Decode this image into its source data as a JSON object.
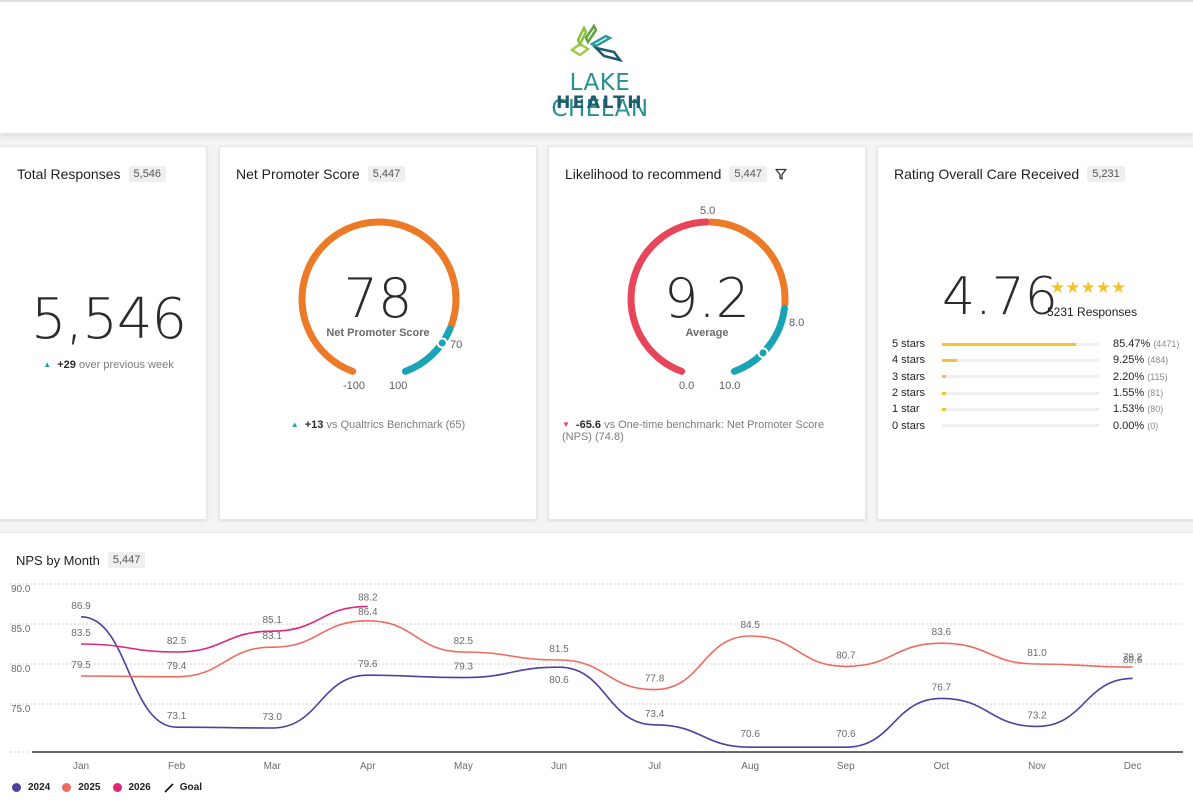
{
  "header": {
    "logo_line1": "LAKE CHELAN",
    "logo_line2": "HEALTH"
  },
  "total_responses": {
    "title": "Total Responses",
    "badge": "5,546",
    "value": "5,546",
    "delta_value": "+29",
    "delta_text": "over previous week"
  },
  "nps": {
    "title": "Net Promoter Score",
    "badge": "5,447",
    "value": "78",
    "sublabel": "Net Promoter Score",
    "scale_min": "-100",
    "scale_max": "100",
    "threshold_label": "70",
    "score": 78,
    "range": [
      -100,
      100
    ],
    "threshold": 70,
    "delta_value": "+13",
    "delta_text": "vs Qualtrics Benchmark (65)",
    "colors": {
      "low": "#ec7a26",
      "high": "#1aa3b5"
    }
  },
  "likelihood": {
    "title": "Likelihood to recommend",
    "badge": "5,447",
    "filter_icon": "filter-icon",
    "value": "9.2",
    "sublabel": "Average",
    "scale_min": "0.0",
    "scale_mid": "5.0",
    "scale_high": "8.0",
    "scale_max": "10.0",
    "score": 9.2,
    "range": [
      0,
      10
    ],
    "thresholds": [
      5,
      8
    ],
    "delta_value": "-65.6",
    "delta_text": "vs One-time benchmark: Net Promoter Score (NPS) (74.8)",
    "colors": {
      "detractor": "#e8455a",
      "passive": "#ec7a26",
      "promoter": "#1aa3b5"
    }
  },
  "rating": {
    "title": "Rating Overall Care Received",
    "badge": "5,231",
    "value": "4.76",
    "stars": "★★★★★",
    "responses": "5231 Responses",
    "distribution": [
      {
        "label": "5 stars",
        "pct": "85.47%",
        "count": "(4471)",
        "fraction": 0.8547
      },
      {
        "label": "4 stars",
        "pct": "9.25%",
        "count": "(484)",
        "fraction": 0.0925
      },
      {
        "label": "3 stars",
        "pct": "2.20%",
        "count": "(115)",
        "fraction": 0.022
      },
      {
        "label": "2 stars",
        "pct": "1.55%",
        "count": "(81)",
        "fraction": 0.0155
      },
      {
        "label": "1 star",
        "pct": "1.53%",
        "count": "(80)",
        "fraction": 0.0153
      },
      {
        "label": "0 stars",
        "pct": "0.00%",
        "count": "(0)",
        "fraction": 0
      }
    ]
  },
  "nps_by_month": {
    "title": "NPS by Month",
    "badge": "5,447"
  },
  "chart_data": {
    "type": "line",
    "title": "NPS by Month",
    "xlabel": "",
    "ylabel": "",
    "categories": [
      "Jan",
      "Feb",
      "Mar",
      "Apr",
      "May",
      "Jun",
      "Jul",
      "Aug",
      "Sep",
      "Oct",
      "Nov",
      "Dec"
    ],
    "y_ticks": [
      "75.0",
      "80.0",
      "85.0",
      "90.0"
    ],
    "y_tick_values": [
      75,
      80,
      85,
      90
    ],
    "ylim": [
      70,
      90
    ],
    "grid": true,
    "legend_position": "bottom-left",
    "series": [
      {
        "name": "2024",
        "color": "#4f3fa0",
        "values": [
          86.9,
          73.1,
          73.0,
          79.6,
          79.3,
          80.6,
          73.4,
          70.6,
          70.6,
          76.7,
          73.2,
          79.2
        ]
      },
      {
        "name": "2025",
        "color": "#ef6b61",
        "values": [
          79.5,
          79.4,
          83.1,
          86.4,
          82.5,
          81.5,
          77.8,
          84.5,
          80.7,
          83.6,
          81.0,
          80.6
        ]
      },
      {
        "name": "2026",
        "color": "#e0257a",
        "values": [
          83.5,
          82.5,
          85.1,
          88.2,
          null,
          null,
          null,
          null,
          null,
          null,
          null,
          null
        ]
      }
    ],
    "goal": {
      "name": "Goal",
      "color": "#111111"
    }
  }
}
